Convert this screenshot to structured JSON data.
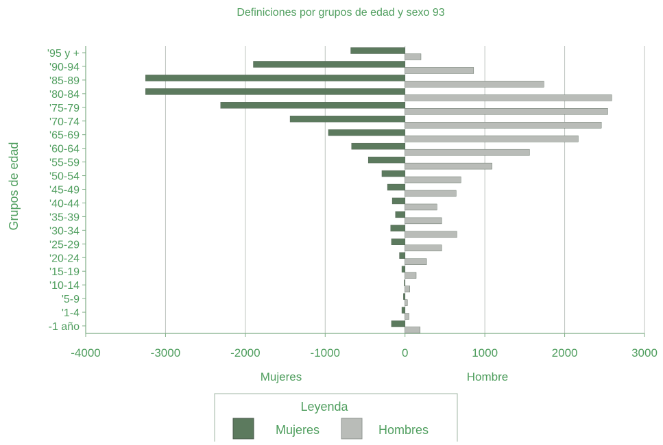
{
  "chart_data": {
    "type": "bar",
    "orientation": "horizontal",
    "title": "Definiciones por grupos de edad y sexo 93",
    "ylabel": "Grupos de edad",
    "xlabel_left": "Mujeres",
    "xlabel_right": "Hombre",
    "xlim": [
      -4000,
      3000
    ],
    "xticks": [
      -4000,
      -3000,
      -2000,
      -1000,
      0,
      1000,
      2000,
      3000
    ],
    "grid": "vertical",
    "categories": [
      "'95 y +",
      "'90-94",
      "'85-89",
      "'80-84",
      "'75-79",
      "'70-74",
      "'65-69",
      "'60-64",
      "'55-59",
      "'50-54",
      "'45-49",
      "'40-44",
      "'35-39",
      "'30-34",
      "'25-29",
      "'20-24",
      "'15-19",
      "'10-14",
      "'5-9",
      "'1-4",
      "-1 año"
    ],
    "series": [
      {
        "name": "Mujeres",
        "color": "#5c7a5e",
        "values": [
          -680,
          -1900,
          -3250,
          -3250,
          -2310,
          -1440,
          -960,
          -670,
          -460,
          -290,
          -220,
          -160,
          -120,
          -180,
          -170,
          -70,
          -40,
          -10,
          -20,
          -40,
          -170
        ]
      },
      {
        "name": "Hombres",
        "color": "#b9bcb8",
        "values": [
          200,
          860,
          1740,
          2590,
          2540,
          2460,
          2170,
          1560,
          1090,
          700,
          640,
          400,
          460,
          650,
          460,
          270,
          140,
          60,
          30,
          50,
          190
        ]
      }
    ],
    "legend": {
      "title": "Leyenda",
      "position": "bottom-center",
      "entries": [
        "Mujeres",
        "Hombres"
      ]
    },
    "colors": {
      "text": "#4f9e5e",
      "axis": "#7fae86",
      "grid": "#bcc2bd"
    }
  }
}
